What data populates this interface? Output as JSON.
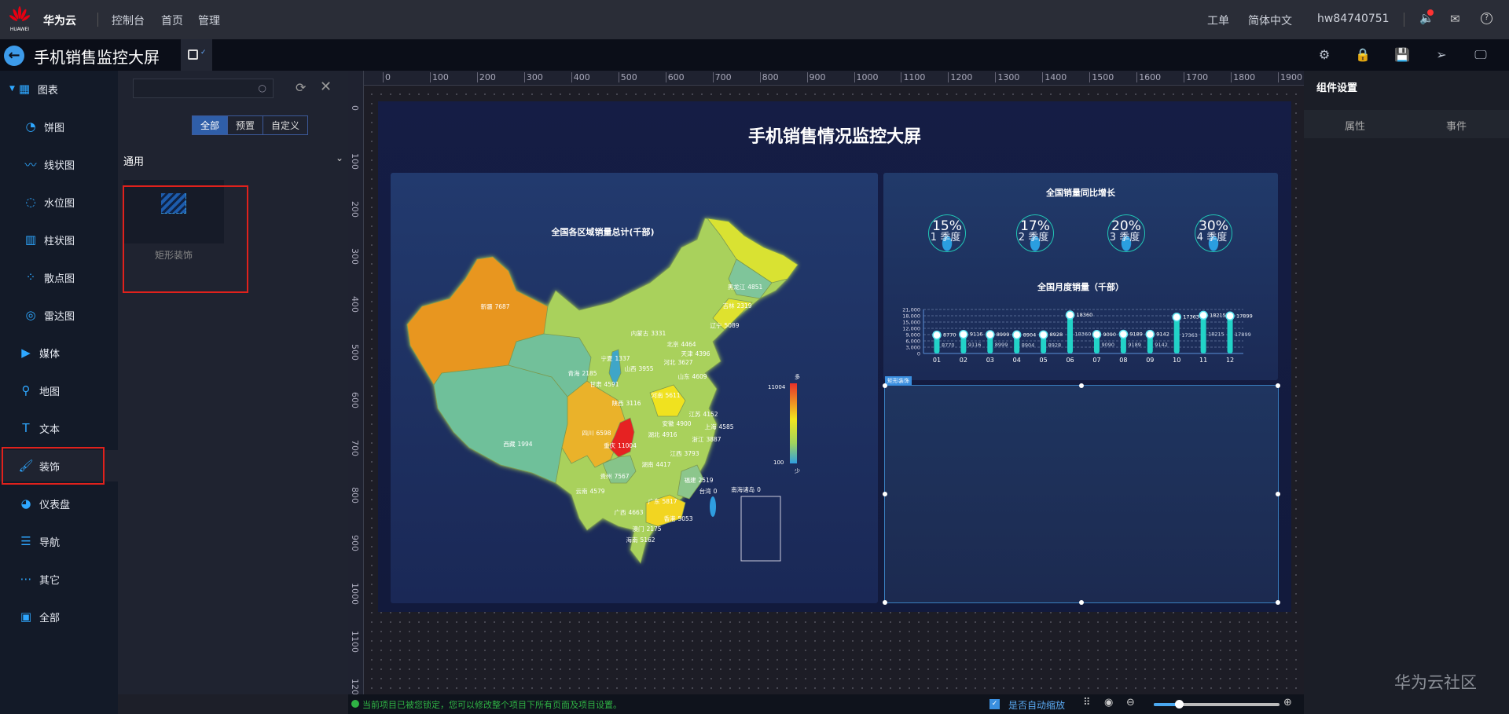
{
  "topbar": {
    "brand": "华为云",
    "logo_text": "HUAWEI",
    "nav": [
      "控制台",
      "首页",
      "管理"
    ],
    "right": [
      "工单",
      "简体中文",
      "hw84740751"
    ]
  },
  "project": {
    "title": "手机销售监控大屏"
  },
  "sidebar": {
    "items": [
      {
        "label": "图表",
        "icon": "grid-icon"
      },
      {
        "label": "饼图",
        "icon": "pie-icon"
      },
      {
        "label": "线状图",
        "icon": "line-icon"
      },
      {
        "label": "水位图",
        "icon": "water-icon"
      },
      {
        "label": "柱状图",
        "icon": "bar-icon"
      },
      {
        "label": "散点图",
        "icon": "scatter-icon"
      },
      {
        "label": "雷达图",
        "icon": "radar-icon"
      },
      {
        "label": "媒体",
        "icon": "media-icon"
      },
      {
        "label": "地图",
        "icon": "map-pin-icon"
      },
      {
        "label": "文本",
        "icon": "text-icon"
      },
      {
        "label": "装饰",
        "icon": "paint-roller-icon"
      },
      {
        "label": "仪表盘",
        "icon": "dashboard-icon"
      },
      {
        "label": "导航",
        "icon": "list-icon"
      },
      {
        "label": "其它",
        "icon": "more-icon"
      },
      {
        "label": "全部",
        "icon": "all-icon"
      }
    ],
    "selected": "装饰"
  },
  "panel": {
    "search_placeholder": "",
    "tabs": [
      "全部",
      "预置",
      "自定义"
    ],
    "active_tab": "全部",
    "section": "通用",
    "cards": [
      {
        "label": "矩形装饰"
      }
    ]
  },
  "ruler": {
    "h": [
      0,
      100,
      200,
      300,
      400,
      500,
      600,
      700,
      800,
      900,
      1000,
      1100,
      1200,
      1300,
      1400,
      1500,
      1600,
      1700,
      1800,
      1900
    ],
    "v": [
      0,
      100,
      200,
      300,
      400,
      500,
      600,
      700,
      800,
      900,
      1000,
      1100,
      1200
    ]
  },
  "screen": {
    "title": "手机销售情况监控大屏",
    "map": {
      "title": "全国各区域销量总计(千部)",
      "legend_max": "11004",
      "legend_min": "100",
      "legend_high": "多",
      "legend_low": "少",
      "regions": [
        [
          "新疆",
          7687
        ],
        [
          "西藏",
          1994
        ],
        [
          "青海",
          2185
        ],
        [
          "甘肃",
          4591
        ],
        [
          "宁夏",
          1337
        ],
        [
          "内蒙古",
          3331
        ],
        [
          "黑龙江",
          4851
        ],
        [
          "吉林",
          2319
        ],
        [
          "辽宁",
          5089
        ],
        [
          "北京",
          4464
        ],
        [
          "天津",
          4396
        ],
        [
          "山西",
          3955
        ],
        [
          "河北",
          3627
        ],
        [
          "山东",
          4609
        ],
        [
          "河南",
          5611
        ],
        [
          "陕西",
          3116
        ],
        [
          "四川",
          6598
        ],
        [
          "重庆",
          11004
        ],
        [
          "湖北",
          4916
        ],
        [
          "安徽",
          4900
        ],
        [
          "江苏",
          4152
        ],
        [
          "上海",
          4585
        ],
        [
          "浙江",
          3887
        ],
        [
          "江西",
          3793
        ],
        [
          "湖南",
          4417
        ],
        [
          "贵州",
          7567
        ],
        [
          "云南",
          4579
        ],
        [
          "广西",
          4663
        ],
        [
          "广东",
          5817
        ],
        [
          "福建",
          2519
        ],
        [
          "台湾",
          0
        ],
        [
          "南海诸岛",
          0
        ],
        [
          "香港",
          5053
        ],
        [
          "澳门",
          2175
        ],
        [
          "海南",
          5162
        ]
      ]
    },
    "growth": {
      "title": "全国销量同比增长",
      "items": [
        {
          "value": "15%",
          "label": "1 季度"
        },
        {
          "value": "17%",
          "label": "2 季度"
        },
        {
          "value": "20%",
          "label": "3 季度"
        },
        {
          "value": "30%",
          "label": "4 季度"
        }
      ]
    },
    "selected_tag": "矩形装饰"
  },
  "chart_data": {
    "type": "bar",
    "title": "全国月度销量（千部）",
    "categories": [
      "01",
      "02",
      "03",
      "04",
      "05",
      "06",
      "07",
      "08",
      "09",
      "10",
      "11",
      "12"
    ],
    "values": [
      8770,
      9116,
      8999,
      8904,
      8928,
      18360,
      9090,
      9189,
      9142,
      17363,
      18215,
      17899
    ],
    "ylim": [
      0,
      21000
    ],
    "yticks": [
      "0",
      "3,000",
      "6,000",
      "9,000",
      "12,000",
      "15,000",
      "18,000",
      "21,000"
    ],
    "grid": true
  },
  "rightpanel": {
    "title": "组件设置",
    "tabs": [
      "属性",
      "事件"
    ]
  },
  "status": {
    "message": "当前项目已被您锁定，您可以修改整个项目下所有页面及项目设置。",
    "auto_zoom_label": "是否自动缩放",
    "auto_zoom_checked": true,
    "zoom_fraction": 0.2
  },
  "watermark": "华为云社区",
  "colors": {
    "accent": "#2e9bff",
    "highlight": "#e0211c",
    "status_green": "#2fb344"
  }
}
